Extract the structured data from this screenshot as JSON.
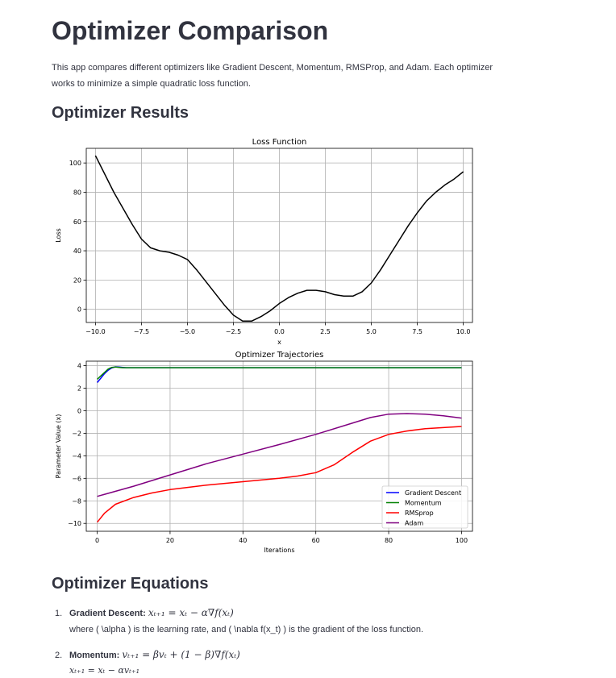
{
  "page": {
    "title": "Optimizer Comparison",
    "intro": "This app compares different optimizers like Gradient Descent, Momentum, RMSProp, and Adam. Each optimizer works to minimize a simple quadratic loss function.",
    "results_heading": "Optimizer Results",
    "equations_heading": "Optimizer Equations"
  },
  "equations": [
    {
      "number": "1.",
      "name": "Gradient Descent",
      "formula": "xₜ₊₁ = xₜ − α∇f(xₜ)",
      "note": "where ( \\alpha ) is the learning rate, and ( \\nabla f(x_t) ) is the gradient of the loss function."
    },
    {
      "number": "2.",
      "name": "Momentum",
      "formula": "vₜ₊₁ = βvₜ + (1 − β)∇f(xₜ)",
      "formula2": "xₜ₊₁ = xₜ − αvₜ₊₁"
    }
  ],
  "chart_data": [
    {
      "type": "line",
      "title": "Loss Function",
      "xlabel": "x",
      "ylabel": "Loss",
      "xlim": [
        -10.5,
        10.5
      ],
      "ylim": [
        -9,
        110
      ],
      "xticks": [
        -10.0,
        -7.5,
        -5.0,
        -2.5,
        0.0,
        2.5,
        5.0,
        7.5,
        10.0
      ],
      "xtick_labels": [
        "−10.0",
        "−7.5",
        "−5.0",
        "−2.5",
        "0.0",
        "2.5",
        "5.0",
        "7.5",
        "10.0"
      ],
      "yticks": [
        0,
        20,
        40,
        60,
        80,
        100
      ],
      "ytick_labels": [
        "0",
        "20",
        "40",
        "60",
        "80",
        "100"
      ],
      "grid": true,
      "series": [
        {
          "color": "#000000",
          "x": [
            -10,
            -9,
            -8,
            -7.5,
            -7,
            -6.5,
            -6,
            -5.5,
            -5,
            -4.5,
            -4,
            -3.5,
            -3,
            -2.5,
            -2,
            -1.5,
            -1,
            -0.5,
            0,
            0.5,
            1,
            1.5,
            2,
            2.5,
            3,
            3.5,
            4,
            4.5,
            5,
            5.5,
            6,
            6.5,
            7,
            7.5,
            8,
            8.5,
            9,
            9.5,
            10
          ],
          "y": [
            105,
            80,
            58,
            48,
            42,
            40,
            39,
            37,
            34,
            27,
            19,
            11,
            3,
            -4,
            -8,
            -8,
            -5,
            -1,
            4,
            8,
            11,
            13,
            13,
            12,
            10,
            9,
            9,
            12,
            18,
            27,
            37,
            47,
            57,
            66,
            74,
            80,
            85,
            89,
            94
          ]
        }
      ]
    },
    {
      "type": "line",
      "title": "Optimizer Trajectories",
      "xlabel": "Iterations",
      "ylabel": "Parameter Value (x)",
      "xlim": [
        -3,
        103
      ],
      "ylim": [
        -10.7,
        4.4
      ],
      "xticks": [
        0,
        20,
        40,
        60,
        80,
        100
      ],
      "xtick_labels": [
        "0",
        "20",
        "40",
        "60",
        "80",
        "100"
      ],
      "yticks": [
        4,
        2,
        0,
        -2,
        -4,
        -6,
        -8,
        -10
      ],
      "ytick_labels": [
        "4",
        "2",
        "0",
        "−2",
        "−4",
        "−6",
        "−8",
        "−10"
      ],
      "grid": true,
      "legend": "lower-right",
      "series": [
        {
          "name": "Gradient Descent",
          "color": "#0000ff",
          "x": [
            0,
            1,
            2,
            3,
            4,
            5,
            6,
            7,
            8,
            10,
            12,
            15,
            100
          ],
          "y": [
            2.5,
            2.9,
            3.3,
            3.6,
            3.8,
            3.9,
            3.88,
            3.85,
            3.82,
            3.82,
            3.82,
            3.82,
            3.82
          ]
        },
        {
          "name": "Momentum",
          "color": "#008000",
          "x": [
            0,
            1,
            2,
            3,
            4,
            5,
            6,
            7,
            8,
            10,
            100
          ],
          "y": [
            2.8,
            3.1,
            3.4,
            3.7,
            3.85,
            3.88,
            3.85,
            3.82,
            3.82,
            3.82,
            3.82
          ]
        },
        {
          "name": "RMSprop",
          "color": "#ff0000",
          "x": [
            0,
            2,
            5,
            10,
            15,
            20,
            25,
            30,
            35,
            40,
            45,
            50,
            55,
            60,
            65,
            70,
            75,
            80,
            85,
            90,
            95,
            100
          ],
          "y": [
            -9.9,
            -9.1,
            -8.3,
            -7.7,
            -7.3,
            -7.0,
            -6.8,
            -6.6,
            -6.45,
            -6.3,
            -6.15,
            -6.0,
            -5.8,
            -5.5,
            -4.8,
            -3.7,
            -2.7,
            -2.1,
            -1.8,
            -1.6,
            -1.5,
            -1.4
          ]
        },
        {
          "name": "Adam",
          "color": "#800080",
          "x": [
            0,
            10,
            20,
            30,
            40,
            50,
            60,
            70,
            75,
            80,
            85,
            90,
            95,
            100
          ],
          "y": [
            -7.6,
            -6.7,
            -5.7,
            -4.7,
            -3.85,
            -3.0,
            -2.1,
            -1.1,
            -0.6,
            -0.3,
            -0.25,
            -0.3,
            -0.45,
            -0.65
          ]
        }
      ]
    }
  ]
}
